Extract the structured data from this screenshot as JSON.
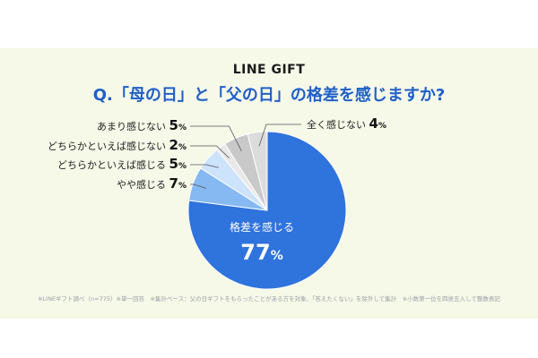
{
  "brand": "LINE GIFT",
  "title": "Q.「母の日」と「父の日」の格差を感じますか?",
  "footnote": "※LINEギフト調べ（n=775）※単一回答　※集計ベース：父の日ギフトをもらったことがある方を対象、「答えたくない」を除外して集計　※小数第一位を四捨五入して整数表記",
  "chart_data": {
    "type": "pie",
    "unit": "%",
    "slices": [
      {
        "label": "格差を感じる",
        "value": 77,
        "color": "#2f73dc"
      },
      {
        "label": "やや感じる",
        "value": 7,
        "color": "#86b9f2"
      },
      {
        "label": "どちらかといえば感じる",
        "value": 5,
        "color": "#cde2fb"
      },
      {
        "label": "どちらかといえば感じない",
        "value": 2,
        "color": "#e8e8e8"
      },
      {
        "label": "あまり感じない",
        "value": 5,
        "color": "#c9c9c9"
      },
      {
        "label": "全く感じない",
        "value": 4,
        "color": "#dcdcdc"
      }
    ]
  }
}
